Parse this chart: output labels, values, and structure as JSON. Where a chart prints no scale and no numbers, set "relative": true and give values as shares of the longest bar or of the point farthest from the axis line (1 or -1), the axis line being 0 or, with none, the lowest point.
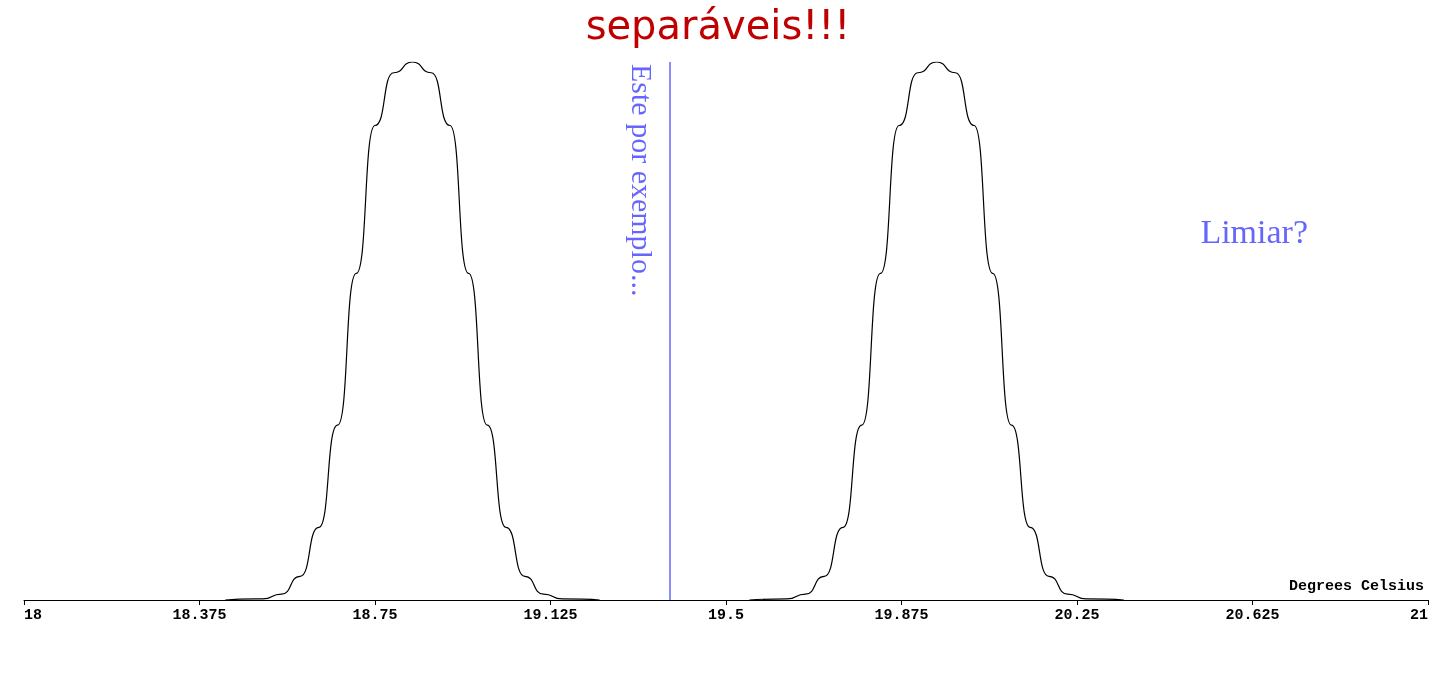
{
  "chart_data": {
    "type": "line",
    "title": "separáveis!!!",
    "xlabel": "Degrees Celsius",
    "relative": true,
    "marker": "none",
    "grid": false,
    "xlim": [
      18,
      21
    ],
    "xticks": [
      18,
      18.375,
      18.75,
      19.125,
      19.5,
      19.875,
      20.25,
      20.625,
      21
    ],
    "series": [
      {
        "color": "#000000",
        "x": [
          18.43,
          18.51,
          18.55,
          18.59,
          18.63,
          18.67,
          18.71,
          18.75,
          18.79,
          18.83,
          18.87,
          18.91,
          18.95,
          18.99,
          19.03,
          19.07,
          19.11,
          19.15,
          19.23
        ],
        "values": [
          0,
          0.002,
          0.011,
          0.044,
          0.135,
          0.325,
          0.607,
          0.882,
          0.98,
          1,
          0.98,
          0.882,
          0.607,
          0.325,
          0.135,
          0.044,
          0.011,
          0.002,
          0
        ]
      },
      {
        "color": "#000000",
        "x": [
          19.55,
          19.63,
          19.67,
          19.71,
          19.75,
          19.79,
          19.83,
          19.87,
          19.91,
          19.95,
          19.99,
          20.03,
          20.07,
          20.11,
          20.15,
          20.19,
          20.23,
          20.27,
          20.35
        ],
        "values": [
          0,
          0.002,
          0.011,
          0.044,
          0.135,
          0.325,
          0.607,
          0.882,
          0.98,
          1,
          0.98,
          0.882,
          0.607,
          0.325,
          0.135,
          0.044,
          0.011,
          0.002,
          0
        ]
      }
    ],
    "ref_lines": [
      {
        "axis": "x",
        "value": 19.38,
        "label": "Este por exemplo...",
        "color": "#6666ff"
      }
    ],
    "annotations": [
      "Limiar?"
    ]
  }
}
